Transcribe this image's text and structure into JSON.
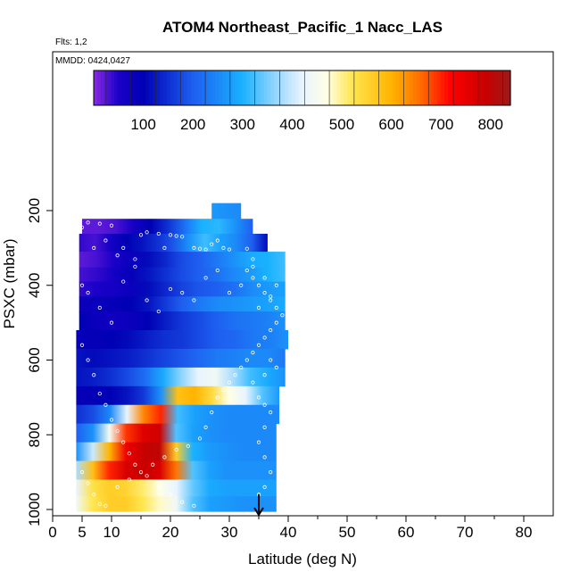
{
  "chart_data": {
    "type": "heatmap",
    "title": "ATOM4 Northeast_Pacific_1 Nacc_LAS",
    "flights_label": "Flts: 1,2",
    "dates_label": "MMDD: 0424,0427",
    "xlabel": "Latitude (deg N)",
    "ylabel": "PSXC (mbar)",
    "xlim": [
      0,
      85
    ],
    "ylim": [
      1000,
      0
    ],
    "x_ticks": [
      0,
      5,
      10,
      20,
      30,
      40,
      50,
      60,
      70,
      80
    ],
    "y_ticks": [
      200,
      400,
      600,
      800,
      1000
    ],
    "grid": false,
    "marker_latitude": 35,
    "colorbar": {
      "range": [
        0,
        840
      ],
      "ticks": [
        100,
        200,
        300,
        400,
        500,
        600,
        700,
        800
      ],
      "stops": [
        {
          "v": 0,
          "c": "#8a2be2"
        },
        {
          "v": 50,
          "c": "#1a00c8"
        },
        {
          "v": 100,
          "c": "#0000b4"
        },
        {
          "v": 200,
          "c": "#1e5ff0"
        },
        {
          "v": 300,
          "c": "#19b2ff"
        },
        {
          "v": 360,
          "c": "#8ad2ff"
        },
        {
          "v": 420,
          "c": "#e8f4ff"
        },
        {
          "v": 470,
          "c": "#ffffe6"
        },
        {
          "v": 520,
          "c": "#ffe650"
        },
        {
          "v": 600,
          "c": "#ffb400"
        },
        {
          "v": 660,
          "c": "#ff6a00"
        },
        {
          "v": 720,
          "c": "#ff0000"
        },
        {
          "v": 790,
          "c": "#c80000"
        },
        {
          "v": 840,
          "c": "#9b1b1b"
        }
      ]
    },
    "bands": [
      {
        "p_top": 180,
        "p_bot": 222,
        "x0": 27,
        "x1": 32,
        "values": [
          270,
          250
        ]
      },
      {
        "p_top": 222,
        "p_bot": 262,
        "x0": 5,
        "x1": 34,
        "values": [
          20,
          20,
          30,
          60,
          100,
          150,
          220,
          300,
          310,
          260,
          200
        ]
      },
      {
        "p_top": 262,
        "p_bot": 310,
        "x0": 4.5,
        "x1": 36.5,
        "values": [
          40,
          30,
          60,
          100,
          120,
          150,
          190,
          260,
          320,
          280,
          250,
          200,
          110
        ]
      },
      {
        "p_top": 310,
        "p_bot": 352,
        "x0": 4.5,
        "x1": 39.5,
        "values": [
          20,
          30,
          50,
          80,
          110,
          140,
          180,
          200,
          230,
          260,
          290,
          300,
          320
        ]
      },
      {
        "p_top": 352,
        "p_bot": 390,
        "x0": 4.5,
        "x1": 39.5,
        "values": [
          30,
          40,
          60,
          90,
          120,
          150,
          180,
          200,
          220,
          250,
          270,
          300,
          320
        ]
      },
      {
        "p_top": 390,
        "p_bot": 430,
        "x0": 4.5,
        "x1": 39.5,
        "values": [
          40,
          50,
          60,
          80,
          110,
          140,
          170,
          190,
          200,
          220,
          250,
          270,
          280
        ]
      },
      {
        "p_top": 430,
        "p_bot": 470,
        "x0": 4.5,
        "x1": 39.5,
        "values": [
          80,
          80,
          90,
          100,
          120,
          160,
          200,
          230,
          250,
          260,
          270,
          280,
          290
        ]
      },
      {
        "p_top": 470,
        "p_bot": 520,
        "x0": 4.5,
        "x1": 39.5,
        "values": [
          100,
          80,
          70,
          80,
          100,
          130,
          160,
          180,
          200,
          220,
          230,
          240,
          260
        ]
      },
      {
        "p_top": 520,
        "p_bot": 570,
        "x0": 4,
        "x1": 40,
        "values": [
          90,
          90,
          100,
          110,
          130,
          150,
          160,
          180,
          200,
          210,
          230,
          240,
          260
        ]
      },
      {
        "p_top": 570,
        "p_bot": 620,
        "x0": 4,
        "x1": 39.5,
        "values": [
          120,
          110,
          120,
          130,
          150,
          170,
          190,
          210,
          230,
          240,
          250,
          250,
          230
        ]
      },
      {
        "p_top": 620,
        "p_bot": 670,
        "x0": 4,
        "x1": 39.5,
        "values": [
          120,
          130,
          150,
          180,
          220,
          290,
          360,
          420,
          440,
          380,
          320,
          290,
          260
        ]
      },
      {
        "p_top": 670,
        "p_bot": 720,
        "x0": 4,
        "x1": 38.5,
        "values": [
          90,
          90,
          100,
          120,
          160,
          260,
          580,
          600,
          540,
          470,
          420,
          330,
          270
        ]
      },
      {
        "p_top": 720,
        "p_bot": 770,
        "x0": 4,
        "x1": 38.5,
        "values": [
          150,
          180,
          250,
          420,
          640,
          700,
          320,
          280,
          260,
          250,
          250,
          250,
          250
        ]
      },
      {
        "p_top": 770,
        "p_bot": 820,
        "x0": 4,
        "x1": 38,
        "values": [
          200,
          260,
          450,
          690,
          760,
          780,
          330,
          280,
          260,
          250,
          250,
          250,
          250
        ]
      },
      {
        "p_top": 820,
        "p_bot": 870,
        "x0": 4,
        "x1": 38,
        "values": [
          260,
          400,
          600,
          740,
          790,
          800,
          560,
          300,
          270,
          260,
          250,
          250,
          250
        ]
      },
      {
        "p_top": 870,
        "p_bot": 920,
        "x0": 4,
        "x1": 38,
        "values": [
          380,
          580,
          700,
          770,
          790,
          770,
          650,
          330,
          280,
          260,
          260,
          260,
          260
        ]
      },
      {
        "p_top": 920,
        "p_bot": 965,
        "x0": 4,
        "x1": 38,
        "values": [
          420,
          530,
          560,
          550,
          510,
          470,
          420,
          340,
          290,
          280,
          280,
          280,
          280
        ]
      },
      {
        "p_top": 965,
        "p_bot": 1005,
        "x0": 4,
        "x1": 38,
        "values": [
          440,
          520,
          560,
          560,
          520,
          480,
          440,
          330,
          280,
          270,
          260,
          260,
          260
        ]
      }
    ],
    "track_points": [
      [
        5,
        245
      ],
      [
        6,
        232
      ],
      [
        7,
        300
      ],
      [
        8,
        235
      ],
      [
        9,
        280
      ],
      [
        10,
        240
      ],
      [
        11,
        320
      ],
      [
        12,
        300
      ],
      [
        14,
        330
      ],
      [
        15,
        265
      ],
      [
        16,
        258
      ],
      [
        18,
        262
      ],
      [
        19,
        300
      ],
      [
        20,
        265
      ],
      [
        21,
        268
      ],
      [
        22,
        270
      ],
      [
        24,
        300
      ],
      [
        25,
        302
      ],
      [
        26,
        304
      ],
      [
        27,
        290
      ],
      [
        28,
        280
      ],
      [
        29,
        300
      ],
      [
        30,
        304
      ],
      [
        33,
        302
      ],
      [
        34,
        330
      ],
      [
        5,
        400
      ],
      [
        6,
        420
      ],
      [
        8,
        460
      ],
      [
        10,
        500
      ],
      [
        12,
        390
      ],
      [
        14,
        350
      ],
      [
        16,
        440
      ],
      [
        18,
        470
      ],
      [
        20,
        410
      ],
      [
        22,
        420
      ],
      [
        24,
        440
      ],
      [
        26,
        380
      ],
      [
        28,
        360
      ],
      [
        30,
        420
      ],
      [
        32,
        400
      ],
      [
        34,
        350
      ],
      [
        36,
        380
      ],
      [
        38,
        400
      ],
      [
        37,
        430
      ],
      [
        35,
        460
      ],
      [
        5,
        560
      ],
      [
        6,
        600
      ],
      [
        7,
        640
      ],
      [
        8,
        690
      ],
      [
        9,
        720
      ],
      [
        10,
        760
      ],
      [
        11,
        790
      ],
      [
        12,
        820
      ],
      [
        13,
        850
      ],
      [
        14,
        880
      ],
      [
        16,
        910
      ],
      [
        18,
        940
      ],
      [
        20,
        960
      ],
      [
        22,
        980
      ],
      [
        24,
        990
      ],
      [
        5,
        900
      ],
      [
        6,
        930
      ],
      [
        7,
        960
      ],
      [
        8,
        985
      ],
      [
        9,
        990
      ],
      [
        11,
        940
      ],
      [
        13,
        920
      ],
      [
        15,
        900
      ],
      [
        17,
        880
      ],
      [
        19,
        860
      ],
      [
        21,
        840
      ],
      [
        23,
        830
      ],
      [
        25,
        810
      ],
      [
        26,
        780
      ],
      [
        27,
        740
      ],
      [
        28,
        700
      ],
      [
        29,
        680
      ],
      [
        30,
        660
      ],
      [
        31,
        640
      ],
      [
        32,
        620
      ],
      [
        33,
        600
      ],
      [
        34,
        580
      ],
      [
        35,
        560
      ],
      [
        36,
        540
      ],
      [
        37,
        520
      ],
      [
        38,
        500
      ],
      [
        39,
        480
      ],
      [
        38,
        460
      ],
      [
        37,
        440
      ],
      [
        36,
        420
      ],
      [
        35,
        400
      ],
      [
        34,
        380
      ],
      [
        33,
        360
      ],
      [
        37,
        600
      ],
      [
        38,
        620
      ],
      [
        36,
        640
      ],
      [
        34,
        660
      ],
      [
        35,
        700
      ],
      [
        36,
        720
      ],
      [
        37,
        740
      ],
      [
        36,
        780
      ],
      [
        35,
        820
      ],
      [
        36,
        860
      ],
      [
        37,
        900
      ],
      [
        36,
        940
      ],
      [
        35,
        960
      ]
    ]
  }
}
